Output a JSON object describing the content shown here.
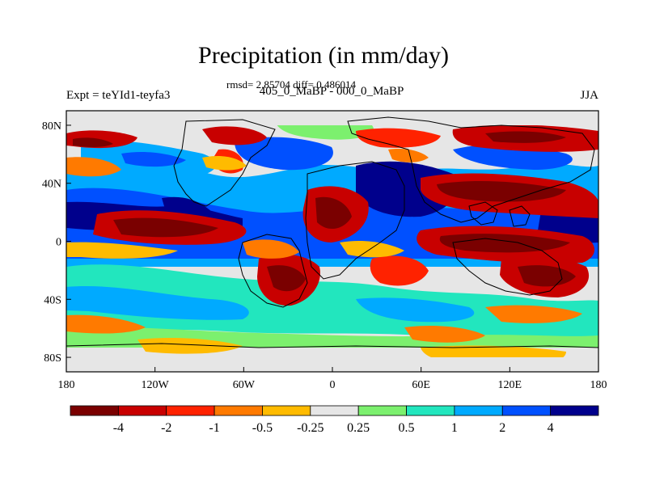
{
  "title": "Precipitation (in mm/day)",
  "stats": "rmsd= 2.85704 diff= 0.486014",
  "experiment": "Expt = teYId1-teyfa3",
  "subtitle": "405_0_MaBP - 000_0_MaBP",
  "season": "JJA",
  "map": {
    "lon_ticks": [
      {
        "value": -180,
        "label": "180"
      },
      {
        "value": -120,
        "label": "120W"
      },
      {
        "value": -60,
        "label": "60W"
      },
      {
        "value": 0,
        "label": "0"
      },
      {
        "value": 60,
        "label": "60E"
      },
      {
        "value": 120,
        "label": "120E"
      },
      {
        "value": 180,
        "label": "180"
      }
    ],
    "lat_ticks": [
      {
        "value": 80,
        "label": "80N"
      },
      {
        "value": 40,
        "label": "40N"
      },
      {
        "value": 0,
        "label": "0"
      },
      {
        "value": -40,
        "label": "40S"
      },
      {
        "value": -80,
        "label": "80S"
      }
    ],
    "lon_range": [
      -180,
      180
    ],
    "lat_range": [
      -90,
      90
    ]
  },
  "colorbar": {
    "colors": [
      "#7a0000",
      "#c80000",
      "#ff2200",
      "#ff7a00",
      "#ffbb00",
      "#e6e6e6",
      "#7cf06e",
      "#22e6be",
      "#00aaff",
      "#0050ff",
      "#00008c"
    ],
    "labels": [
      "-4",
      "-2",
      "-1",
      "-0.5",
      "-0.25",
      "0.25",
      "0.5",
      "1",
      "2",
      "4"
    ]
  }
}
